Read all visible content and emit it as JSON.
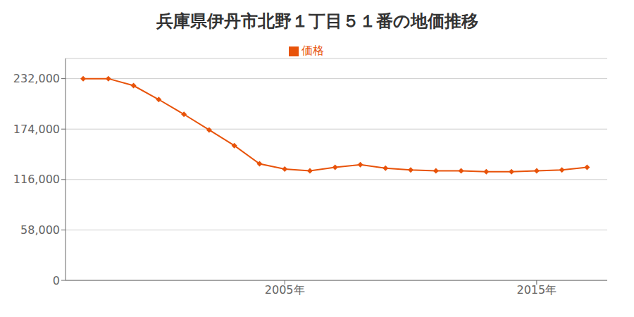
{
  "chart_data": {
    "type": "line",
    "title": "兵庫県伊丹市北野１丁目５１番の地価推移",
    "x": [
      1997,
      1998,
      1999,
      2000,
      2001,
      2002,
      2003,
      2004,
      2005,
      2006,
      2007,
      2008,
      2009,
      2010,
      2011,
      2012,
      2013,
      2014,
      2015,
      2016,
      2017
    ],
    "series": [
      {
        "name": "価格",
        "color": "#E8530A",
        "values": [
          232000,
          232000,
          224000,
          208000,
          191000,
          173000,
          155000,
          134000,
          128000,
          126000,
          130000,
          133000,
          129000,
          127000,
          126000,
          126000,
          125000,
          125000,
          126000,
          127000,
          130000
        ],
        "marker": "diamond"
      }
    ],
    "xlim": [
      1996.3,
      2017.8
    ],
    "xticks": [
      {
        "value": 2005,
        "label": "2005年"
      },
      {
        "value": 2015,
        "label": "2015年"
      }
    ],
    "ylim": [
      0,
      255200
    ],
    "yticks": [
      0,
      {
        "value": 58000,
        "label": "58,000"
      },
      {
        "value": 116000,
        "label": "116,000"
      },
      {
        "value": 174000,
        "label": "174,000"
      },
      {
        "value": 232000,
        "label": "232,000"
      }
    ],
    "grid": true,
    "legend": "top"
  }
}
